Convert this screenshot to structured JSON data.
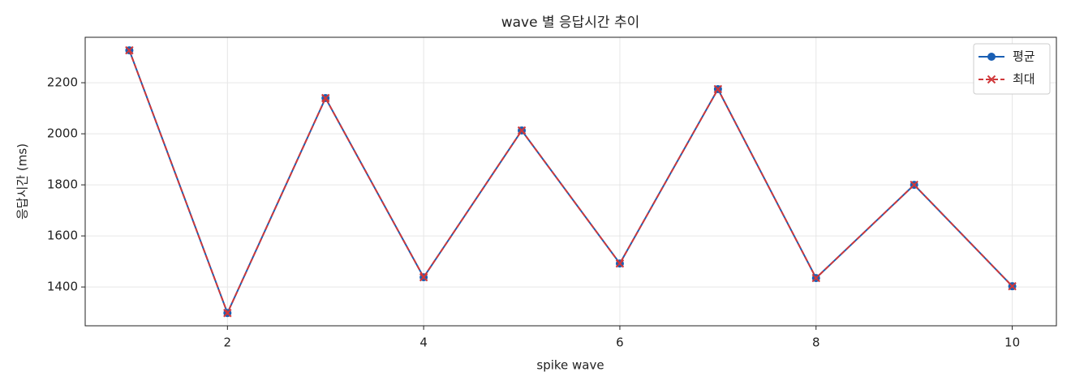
{
  "chart_data": {
    "type": "line",
    "title": "wave 별 응답시간 추이",
    "x_label": "spike wave",
    "y_label": "응답시간 (ms)",
    "x": [
      1,
      2,
      3,
      4,
      5,
      6,
      7,
      8,
      9,
      10
    ],
    "series": [
      {
        "name": "평균",
        "color": "#1a5fb4",
        "marker": "o",
        "linestyle": "solid",
        "values": [
          2327,
          1298,
          2140,
          1438,
          2013,
          1492,
          2175,
          1435,
          1800,
          1403
        ]
      },
      {
        "name": "최대",
        "color": "#d0383a",
        "marker": "x",
        "linestyle": "dashed",
        "values": [
          2327,
          1298,
          2140,
          1438,
          2013,
          1492,
          2175,
          1435,
          1800,
          1403
        ]
      }
    ],
    "xlim": [
      0.55,
      10.45
    ],
    "xticks": [
      2,
      4,
      6,
      8,
      10
    ],
    "ylim": [
      1248,
      2378
    ],
    "yticks": [
      1400,
      1600,
      1800,
      2000,
      2200
    ],
    "grid": true,
    "legend": "upper right"
  }
}
